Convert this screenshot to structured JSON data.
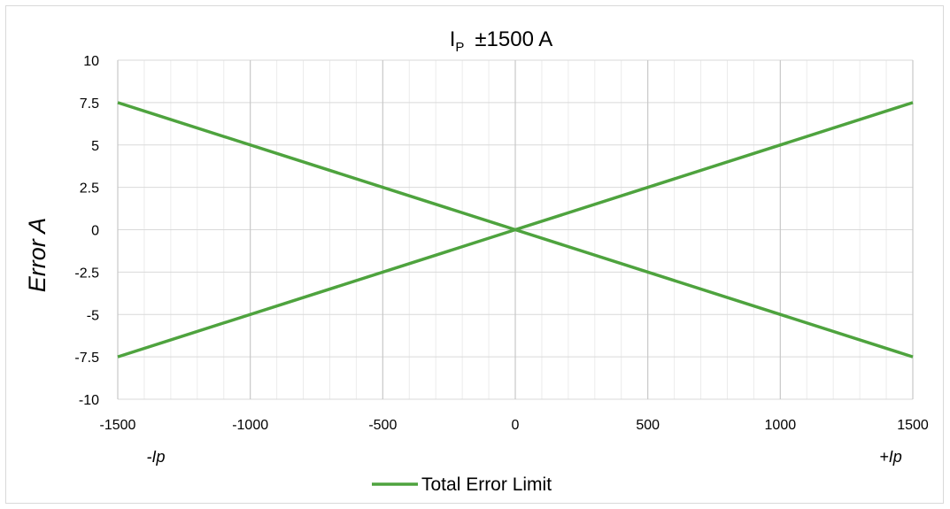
{
  "chart_data": {
    "type": "line",
    "title": "IP ±1500 A",
    "title_main": "I",
    "title_sub": "P",
    "title_rest": "±1500 A",
    "xlabel": "",
    "ylabel": "Error  A",
    "xlim": [
      -1500,
      1500
    ],
    "ylim": [
      -10,
      10
    ],
    "x_ticks": [
      "-1500",
      "-1000",
      "-500",
      "0",
      "500",
      "1000",
      "1500"
    ],
    "y_ticks": [
      "10",
      "7.5",
      "5",
      "2.5",
      "0",
      "-2.5",
      "-5",
      "-7.5",
      "-10"
    ],
    "x_notes": {
      "left": "-Ip",
      "right": "+Ip"
    },
    "grid": true,
    "legend_position": "bottom",
    "series_color": "#4ea33e",
    "series": [
      {
        "name": "Total Error Limit",
        "x": [
          -1500,
          0,
          1500
        ],
        "y": [
          7.5,
          0,
          -7.5
        ]
      },
      {
        "name": "Total Error Limit",
        "x": [
          -1500,
          0,
          1500
        ],
        "y": [
          -7.5,
          0,
          7.5
        ]
      }
    ],
    "legend": [
      "Total Error Limit"
    ]
  }
}
